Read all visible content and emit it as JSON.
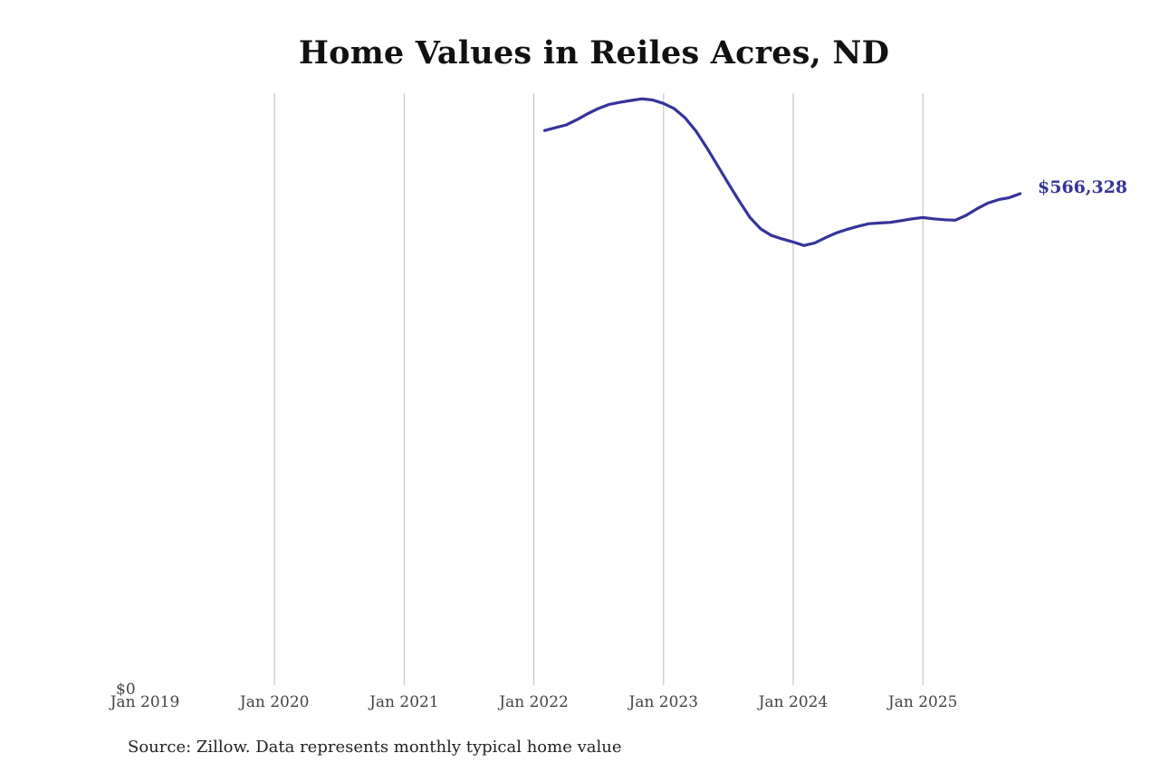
{
  "title": "Home Values in Reiles Acres, ND",
  "source_note": "Source: Zillow. Data represents monthly typical home value",
  "end_label": "$566,328",
  "colors": {
    "line": "#35339a",
    "grid": "#c8c8c8",
    "tick_text": "#444444"
  },
  "chart_data": {
    "type": "line",
    "title": "Home Values in Reiles Acres, ND",
    "xlabel": "",
    "ylabel": "",
    "x_ticks": [
      "Jan 2019",
      "Jan 2020",
      "Jan 2021",
      "Jan 2022",
      "Jan 2023",
      "Jan 2024",
      "Jan 2025"
    ],
    "y_ticks": [
      "$0"
    ],
    "ylim": [
      0,
      680000
    ],
    "grid": "vertical",
    "legend": "none",
    "annotations": [
      {
        "text": "$566,328",
        "at": "2025-10"
      }
    ],
    "series": [
      {
        "name": "Typical home value",
        "x": [
          "2022-02",
          "2022-03",
          "2022-04",
          "2022-05",
          "2022-06",
          "2022-07",
          "2022-08",
          "2022-09",
          "2022-10",
          "2022-11",
          "2022-12",
          "2023-01",
          "2023-02",
          "2023-03",
          "2023-04",
          "2023-05",
          "2023-06",
          "2023-07",
          "2023-08",
          "2023-09",
          "2023-10",
          "2023-11",
          "2023-12",
          "2024-01",
          "2024-02",
          "2024-03",
          "2024-04",
          "2024-05",
          "2024-06",
          "2024-07",
          "2024-08",
          "2024-09",
          "2024-10",
          "2024-11",
          "2024-12",
          "2025-01",
          "2025-02",
          "2025-03",
          "2025-04",
          "2025-05",
          "2025-06",
          "2025-07",
          "2025-08",
          "2025-09",
          "2025-10"
        ],
        "values": [
          638600,
          641800,
          645000,
          651000,
          658000,
          664000,
          668500,
          671000,
          673000,
          674800,
          673500,
          669500,
          663500,
          653000,
          638000,
          619000,
          598500,
          578000,
          558000,
          539000,
          526000,
          518500,
          514500,
          511000,
          507000,
          510000,
          516000,
          521500,
          525500,
          529000,
          532000,
          532800,
          533500,
          535500,
          537500,
          539000,
          537500,
          536500,
          536000,
          541500,
          549000,
          555500,
          559500,
          561800,
          566328
        ]
      }
    ]
  }
}
